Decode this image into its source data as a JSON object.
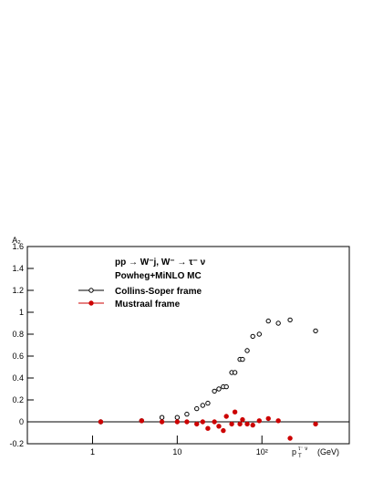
{
  "chart_data": {
    "type": "scatter",
    "y_label": "A₂",
    "x_label": "p",
    "x_label_sub": "T",
    "x_label_sup": "τ⁻ ν",
    "x_label_unit": "(GeV)",
    "legend_title": "pp → W⁻j, W⁻ → τ⁻ ν",
    "legend_subtitle": "Powheg+MiNLO MC",
    "log_x": true,
    "xlim": [
      0.17,
      1075
    ],
    "xticks": [
      1,
      10,
      {
        "value": 100,
        "label": "10²"
      }
    ],
    "ylim": [
      -0.2,
      1.6
    ],
    "yticks": [
      -0.2,
      0,
      0.2,
      0.4,
      0.6,
      0.8,
      1,
      1.2,
      1.4,
      1.6
    ],
    "series": [
      {
        "name": "Collins-Soper frame",
        "color": "#000000",
        "marker": "open",
        "x": [
          1.25,
          3.8,
          6.6,
          10,
          13,
          17,
          20,
          23,
          27.5,
          31,
          35,
          38,
          44,
          48,
          55,
          59,
          67,
          78,
          93,
          119,
          156,
          215,
          430
        ],
        "values": [
          0,
          0.01,
          0.04,
          0.04,
          0.07,
          0.12,
          0.15,
          0.17,
          0.28,
          0.3,
          0.32,
          0.32,
          0.45,
          0.45,
          0.57,
          0.57,
          0.65,
          0.78,
          0.8,
          0.92,
          0.9,
          0.93,
          0.83
        ]
      },
      {
        "name": "Mustraal frame",
        "color": "#cc0000",
        "marker": "filled",
        "x": [
          1.25,
          3.8,
          6.6,
          10,
          13,
          17,
          20,
          23,
          27.5,
          31,
          35,
          38,
          44,
          48,
          55,
          59,
          67,
          78,
          93,
          119,
          156,
          215,
          430
        ],
        "values": [
          0,
          0.01,
          0,
          0,
          0,
          -0.02,
          0,
          -0.06,
          0,
          -0.04,
          -0.08,
          0.05,
          -0.02,
          0.09,
          -0.02,
          0.02,
          -0.02,
          -0.03,
          0.01,
          0.03,
          0.01,
          -0.15,
          -0.02
        ]
      }
    ]
  }
}
